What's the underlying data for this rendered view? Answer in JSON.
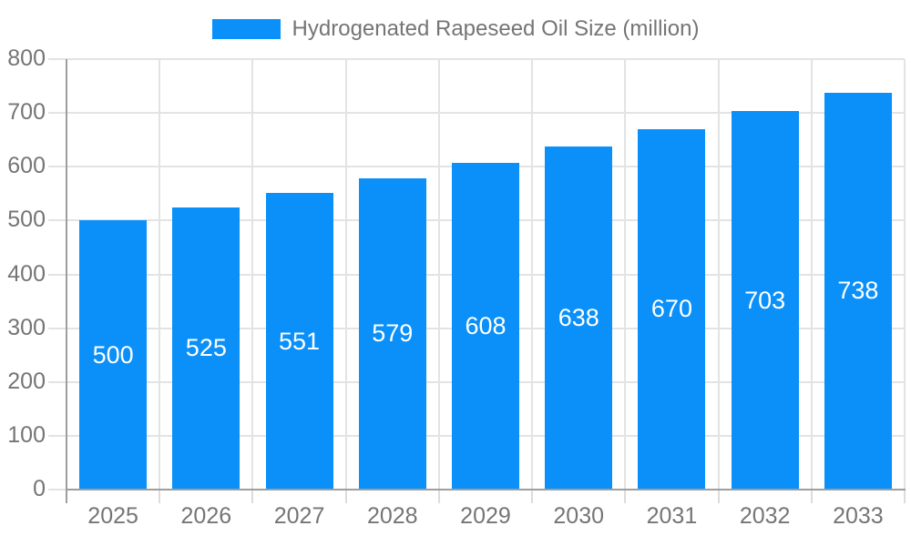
{
  "legend": {
    "label": "Hydrogenated Rapeseed Oil Size (million)"
  },
  "colors": {
    "bar": "#0a90f8",
    "axis_line": "#9e9e9e",
    "gridline": "#e3e3e3",
    "tick_label": "#757575",
    "data_label": "#ffffff",
    "background": "#ffffff"
  },
  "chart_data": {
    "type": "bar",
    "title": "Hydrogenated Rapeseed Oil Size (million)",
    "categories": [
      "2025",
      "2026",
      "2027",
      "2028",
      "2029",
      "2030",
      "2031",
      "2032",
      "2033"
    ],
    "values": [
      500,
      525,
      551,
      579,
      608,
      638,
      670,
      703,
      738
    ],
    "xlabel": "",
    "ylabel": "",
    "ylim": [
      0,
      800
    ],
    "ytick_step": 100,
    "yticks": [
      0,
      100,
      200,
      300,
      400,
      500,
      600,
      700,
      800
    ],
    "grid": true,
    "legend_position": "top",
    "data_label_position": "inside-center"
  }
}
